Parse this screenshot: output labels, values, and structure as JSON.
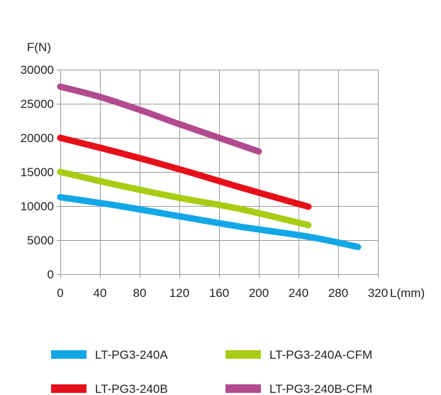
{
  "chart_data": {
    "type": "line",
    "title": "",
    "xlabel": "L(mm)",
    "ylabel": "F(N)",
    "xlim": [
      0,
      320
    ],
    "ylim": [
      0,
      30000
    ],
    "x_ticks": [
      0,
      40,
      80,
      120,
      160,
      200,
      240,
      280,
      320
    ],
    "y_ticks": [
      0,
      5000,
      10000,
      15000,
      20000,
      25000,
      30000
    ],
    "grid": {
      "x": true,
      "y": true
    },
    "legend_position": "bottom",
    "series": [
      {
        "name": "LT-PG3-240A",
        "color": "#12a7e6",
        "points": [
          [
            0,
            11300
          ],
          [
            60,
            10000
          ],
          [
            120,
            8500
          ],
          [
            180,
            7000
          ],
          [
            250,
            5500
          ],
          [
            300,
            4000
          ]
        ]
      },
      {
        "name": "LT-PG3-240A-CFM",
        "color": "#a8cc14",
        "points": [
          [
            0,
            15000
          ],
          [
            60,
            13000
          ],
          [
            120,
            11200
          ],
          [
            180,
            9600
          ],
          [
            250,
            7200
          ]
        ]
      },
      {
        "name": "LT-PG3-240B",
        "color": "#e60f1a",
        "points": [
          [
            0,
            20000
          ],
          [
            60,
            17800
          ],
          [
            120,
            15400
          ],
          [
            180,
            12800
          ],
          [
            250,
            9900
          ]
        ]
      },
      {
        "name": "LT-PG3-240B-CFM",
        "color": "#b24a8f",
        "points": [
          [
            0,
            27500
          ],
          [
            40,
            26000
          ],
          [
            80,
            24100
          ],
          [
            120,
            22000
          ],
          [
            160,
            20000
          ],
          [
            200,
            18000
          ]
        ]
      }
    ]
  }
}
